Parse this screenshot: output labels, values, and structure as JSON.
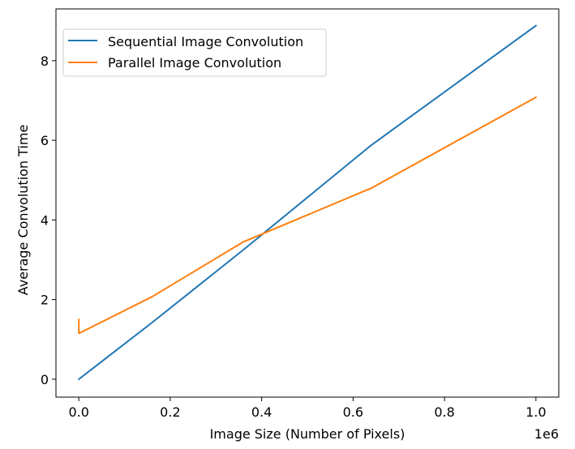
{
  "chart_data": {
    "type": "line",
    "title": "",
    "xlabel": "Image Size (Number of Pixels)",
    "ylabel": "Average Convolution Time",
    "x_offset_label": "1e6",
    "xlim": [
      -0.05,
      1.05
    ],
    "ylim": [
      -0.45,
      9.3
    ],
    "grid": false,
    "legend_position": "upper-left",
    "x_ticks": [
      {
        "value": 0.0,
        "label": "0.0"
      },
      {
        "value": 0.2,
        "label": "0.2"
      },
      {
        "value": 0.4,
        "label": "0.4"
      },
      {
        "value": 0.6,
        "label": "0.6"
      },
      {
        "value": 0.8,
        "label": "0.8"
      },
      {
        "value": 1.0,
        "label": "1.0"
      }
    ],
    "y_ticks": [
      {
        "value": 0,
        "label": "0"
      },
      {
        "value": 2,
        "label": "2"
      },
      {
        "value": 4,
        "label": "4"
      },
      {
        "value": 6,
        "label": "6"
      },
      {
        "value": 8,
        "label": "8"
      }
    ],
    "series": [
      {
        "name": "Sequential Image Convolution",
        "color": "#1f77b4",
        "x": [
          0.0,
          0.16,
          0.36,
          0.64,
          1.0
        ],
        "y": [
          0.0,
          1.42,
          3.25,
          5.88,
          8.88
        ]
      },
      {
        "name": "Parallel Image Convolution",
        "color": "#ff7f0e",
        "x": [
          0.0,
          0.0,
          0.16,
          0.36,
          0.64,
          1.0
        ],
        "y": [
          1.5,
          1.15,
          2.07,
          3.45,
          4.8,
          7.08
        ]
      }
    ]
  }
}
